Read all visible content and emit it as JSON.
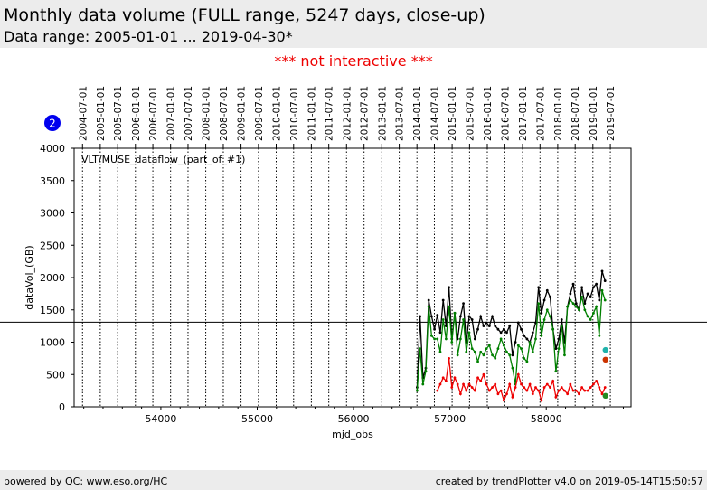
{
  "header": {
    "title": "Monthly data volume (FULL range, 5247 days, close-up)",
    "subtitle": "Data range: 2005-01-01 ... 2019-04-30*"
  },
  "notice": "*** not interactive ***",
  "badge": "2",
  "footer": {
    "left": "powered by QC: www.eso.org/HC",
    "right": "created by trendPlotter v4.0 on 2019-05-14T15:50:57"
  },
  "chart_data": {
    "type": "line",
    "title": "",
    "annotation": "VLT/MUSE_dataflow_(part_of_#1)",
    "xlabel": "mjd_obs",
    "ylabel": "dataVol_(GB)",
    "xlim": [
      53100,
      58880
    ],
    "ylim": [
      0,
      4000
    ],
    "x_ticks": [
      54000,
      55000,
      56000,
      57000,
      58000
    ],
    "y_ticks": [
      0,
      500,
      1000,
      1500,
      2000,
      2500,
      3000,
      3500,
      4000
    ],
    "grid": "vertical dotted lines at each date tick",
    "reference_line": 1310,
    "top_axis_dates": [
      "2004-07-01",
      "2005-01-01",
      "2005-07-01",
      "2006-01-01",
      "2006-07-01",
      "2007-01-01",
      "2007-07-01",
      "2008-01-01",
      "2008-07-01",
      "2009-01-01",
      "2009-07-01",
      "2010-01-01",
      "2010-07-01",
      "2011-01-01",
      "2011-07-01",
      "2012-01-01",
      "2012-07-01",
      "2013-01-01",
      "2013-07-01",
      "2014-01-01",
      "2014-07-01",
      "2015-01-01",
      "2015-07-01",
      "2016-01-01",
      "2016-07-01",
      "2017-01-01",
      "2017-07-01",
      "2018-01-01",
      "2018-07-01",
      "2019-01-01",
      "2019-07-01"
    ],
    "top_axis_mjd": [
      53187,
      53371,
      53552,
      53736,
      53917,
      54101,
      54282,
      54466,
      54648,
      54832,
      55013,
      55197,
      55378,
      55562,
      55743,
      55927,
      56109,
      56293,
      56474,
      56658,
      56839,
      57023,
      57204,
      57388,
      57570,
      57754,
      57935,
      58119,
      58300,
      58484,
      58665
    ],
    "series": [
      {
        "color": "#000000",
        "x": [
          56660,
          56690,
          56720,
          56750,
          56780,
          56810,
          56840,
          56870,
          56900,
          56930,
          56960,
          56990,
          57020,
          57050,
          57080,
          57110,
          57140,
          57170,
          57200,
          57230,
          57260,
          57290,
          57320,
          57350,
          57380,
          57410,
          57440,
          57470,
          57500,
          57530,
          57560,
          57590,
          57620,
          57650,
          57680,
          57710,
          57740,
          57770,
          57800,
          57830,
          57860,
          57890,
          57920,
          57950,
          57980,
          58010,
          58040,
          58070,
          58100,
          58130,
          58160,
          58190,
          58220,
          58250,
          58280,
          58310,
          58340,
          58370,
          58400,
          58430,
          58460,
          58490,
          58520,
          58550,
          58580,
          58610
        ],
        "y": [
          300,
          1400,
          450,
          600,
          1650,
          1400,
          1200,
          1420,
          1150,
          1650,
          1250,
          1850,
          1050,
          1450,
          1050,
          1400,
          1600,
          1000,
          1400,
          1350,
          1050,
          1200,
          1400,
          1250,
          1300,
          1250,
          1400,
          1250,
          1200,
          1150,
          1200,
          1150,
          1250,
          800,
          1000,
          1300,
          1200,
          1100,
          1050,
          1000,
          1150,
          1300,
          1850,
          1450,
          1650,
          1800,
          1700,
          1200,
          900,
          1050,
          1350,
          1000,
          1550,
          1750,
          1900,
          1600,
          1500,
          1850,
          1600,
          1750,
          1700,
          1850,
          1900,
          1650,
          2100,
          1950
        ],
        "endpoint": {
          "x": 58615,
          "y": 170
        }
      },
      {
        "color": "#008000",
        "x": [
          56660,
          56690,
          56720,
          56750,
          56780,
          56810,
          56840,
          56870,
          56900,
          56930,
          56960,
          56990,
          57020,
          57050,
          57080,
          57110,
          57140,
          57170,
          57200,
          57230,
          57260,
          57290,
          57320,
          57350,
          57380,
          57410,
          57440,
          57470,
          57500,
          57530,
          57560,
          57590,
          57620,
          57650,
          57680,
          57710,
          57740,
          57770,
          57800,
          57830,
          57860,
          57890,
          57920,
          57950,
          57980,
          58010,
          58040,
          58070,
          58100,
          58130,
          58160,
          58190,
          58220,
          58250,
          58280,
          58310,
          58340,
          58370,
          58400,
          58430,
          58460,
          58490,
          58520,
          58550,
          58580,
          58610
        ],
        "y": [
          250,
          900,
          350,
          550,
          1550,
          1100,
          1050,
          1050,
          850,
          1350,
          1050,
          1550,
          1000,
          1450,
          800,
          1050,
          1350,
          850,
          1150,
          900,
          850,
          700,
          850,
          800,
          900,
          950,
          800,
          750,
          900,
          1050,
          950,
          850,
          800,
          600,
          350,
          950,
          900,
          750,
          700,
          1000,
          850,
          1050,
          1600,
          1100,
          1350,
          1500,
          1400,
          1200,
          550,
          900,
          1250,
          800,
          1550,
          1650,
          1600,
          1550,
          1500,
          1700,
          1500,
          1400,
          1350,
          1450,
          1550,
          1100,
          1800,
          1650
        ],
        "endpoint": {
          "x": 58610,
          "y": 880
        }
      },
      {
        "color": "#ee0000",
        "x": [
          56870,
          56900,
          56930,
          56960,
          56990,
          57020,
          57050,
          57080,
          57110,
          57140,
          57170,
          57200,
          57230,
          57260,
          57290,
          57320,
          57350,
          57380,
          57410,
          57440,
          57470,
          57500,
          57530,
          57560,
          57590,
          57620,
          57650,
          57680,
          57710,
          57740,
          57770,
          57800,
          57830,
          57860,
          57890,
          57920,
          57950,
          57980,
          58010,
          58040,
          58070,
          58100,
          58130,
          58160,
          58190,
          58220,
          58250,
          58280,
          58310,
          58340,
          58370,
          58400,
          58430,
          58460,
          58490,
          58520,
          58550,
          58580,
          58610
        ],
        "y": [
          250,
          350,
          450,
          400,
          750,
          300,
          450,
          350,
          200,
          350,
          250,
          350,
          300,
          250,
          450,
          400,
          500,
          350,
          250,
          300,
          350,
          200,
          250,
          100,
          200,
          350,
          150,
          300,
          500,
          350,
          300,
          250,
          350,
          200,
          300,
          250,
          100,
          300,
          350,
          300,
          400,
          150,
          250,
          300,
          250,
          200,
          350,
          250,
          250,
          200,
          300,
          250,
          250,
          300,
          350,
          400,
          300,
          200,
          300
        ],
        "endpoint": {
          "x": 58615,
          "y": 730
        }
      }
    ],
    "endpoint_markers": [
      {
        "color": "#20b2aa",
        "x": 58615,
        "y": 880
      },
      {
        "color": "#cc3300",
        "x": 58615,
        "y": 730
      },
      {
        "color": "#228b22",
        "x": 58615,
        "y": 170
      }
    ]
  }
}
